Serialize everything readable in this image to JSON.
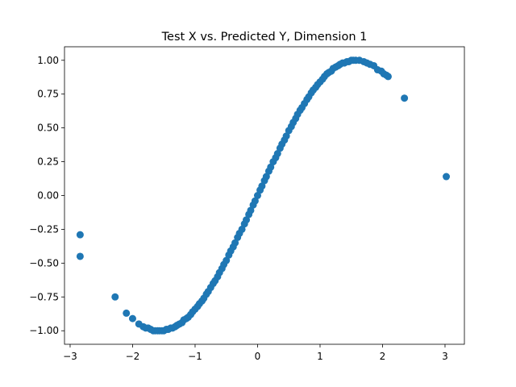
{
  "chart_data": {
    "type": "scatter",
    "title": "Test X vs. Predicted Y, Dimension 1",
    "xlabel": "",
    "ylabel": "",
    "xlim": [
      -3.09,
      3.31
    ],
    "ylim": [
      -1.1,
      1.1
    ],
    "x_ticks": [
      -3,
      -2,
      -1,
      0,
      1,
      2,
      3
    ],
    "x_tick_labels": [
      "−3",
      "−2",
      "−1",
      "0",
      "1",
      "2",
      "3"
    ],
    "y_ticks": [
      -1.0,
      -0.75,
      -0.5,
      -0.25,
      0.0,
      0.25,
      0.5,
      0.75,
      1.0
    ],
    "y_tick_labels": [
      "−1.00",
      "−0.75",
      "−0.50",
      "−0.25",
      "0.00",
      "0.25",
      "0.50",
      "0.75",
      "1.00"
    ],
    "grid": false,
    "marker_color": "#1f77b4",
    "series": [
      {
        "x": [
          -2.84,
          -2.84,
          -2.28,
          -2.1,
          -2.0,
          -1.9,
          -1.83,
          -1.79,
          -1.75,
          -1.71,
          -1.67,
          -1.64,
          -1.6,
          -1.57,
          -1.53,
          -1.5,
          -1.46,
          -1.43,
          -1.39,
          -1.36,
          -1.32,
          -1.29,
          -1.25,
          -1.21,
          -1.18,
          -1.14,
          -1.11,
          -1.07,
          -1.04,
          -1.0,
          -0.96,
          -0.93,
          -0.89,
          -0.86,
          -0.82,
          -0.79,
          -0.75,
          -0.71,
          -0.68,
          -0.64,
          -0.61,
          -0.57,
          -0.54,
          -0.5,
          -0.46,
          -0.43,
          -0.39,
          -0.36,
          -0.32,
          -0.29,
          -0.25,
          -0.21,
          -0.18,
          -0.14,
          -0.11,
          -0.07,
          -0.04,
          0.0,
          0.04,
          0.07,
          0.11,
          0.14,
          0.18,
          0.21,
          0.25,
          0.29,
          0.32,
          0.36,
          0.39,
          0.43,
          0.46,
          0.5,
          0.54,
          0.57,
          0.61,
          0.64,
          0.68,
          0.71,
          0.75,
          0.79,
          0.82,
          0.86,
          0.89,
          0.93,
          0.96,
          1.0,
          1.04,
          1.07,
          1.11,
          1.14,
          1.18,
          1.21,
          1.25,
          1.29,
          1.32,
          1.36,
          1.39,
          1.43,
          1.46,
          1.5,
          1.53,
          1.57,
          1.63,
          1.7,
          1.75,
          1.8,
          1.86,
          1.92,
          1.98,
          2.02,
          2.06,
          2.09,
          2.35,
          3.02
        ],
        "y": [
          -0.29,
          -0.45,
          -0.75,
          -0.87,
          -0.91,
          -0.95,
          -0.97,
          -0.98,
          -0.98,
          -0.99,
          -1.0,
          -1.0,
          -1.0,
          -1.0,
          -1.0,
          -1.0,
          -0.99,
          -0.99,
          -0.98,
          -0.98,
          -0.97,
          -0.96,
          -0.95,
          -0.94,
          -0.92,
          -0.91,
          -0.9,
          -0.88,
          -0.86,
          -0.84,
          -0.82,
          -0.8,
          -0.78,
          -0.76,
          -0.73,
          -0.71,
          -0.68,
          -0.65,
          -0.63,
          -0.6,
          -0.57,
          -0.54,
          -0.51,
          -0.48,
          -0.44,
          -0.41,
          -0.38,
          -0.35,
          -0.31,
          -0.28,
          -0.25,
          -0.21,
          -0.18,
          -0.14,
          -0.11,
          -0.07,
          -0.04,
          0.0,
          0.04,
          0.07,
          0.11,
          0.14,
          0.18,
          0.21,
          0.25,
          0.28,
          0.31,
          0.35,
          0.38,
          0.41,
          0.44,
          0.48,
          0.51,
          0.54,
          0.57,
          0.6,
          0.63,
          0.65,
          0.68,
          0.71,
          0.73,
          0.76,
          0.78,
          0.8,
          0.82,
          0.84,
          0.86,
          0.88,
          0.9,
          0.91,
          0.92,
          0.94,
          0.95,
          0.96,
          0.97,
          0.98,
          0.98,
          0.99,
          0.99,
          1.0,
          1.0,
          1.0,
          1.0,
          0.99,
          0.98,
          0.97,
          0.96,
          0.93,
          0.92,
          0.9,
          0.89,
          0.88,
          0.72,
          0.14
        ]
      }
    ]
  }
}
